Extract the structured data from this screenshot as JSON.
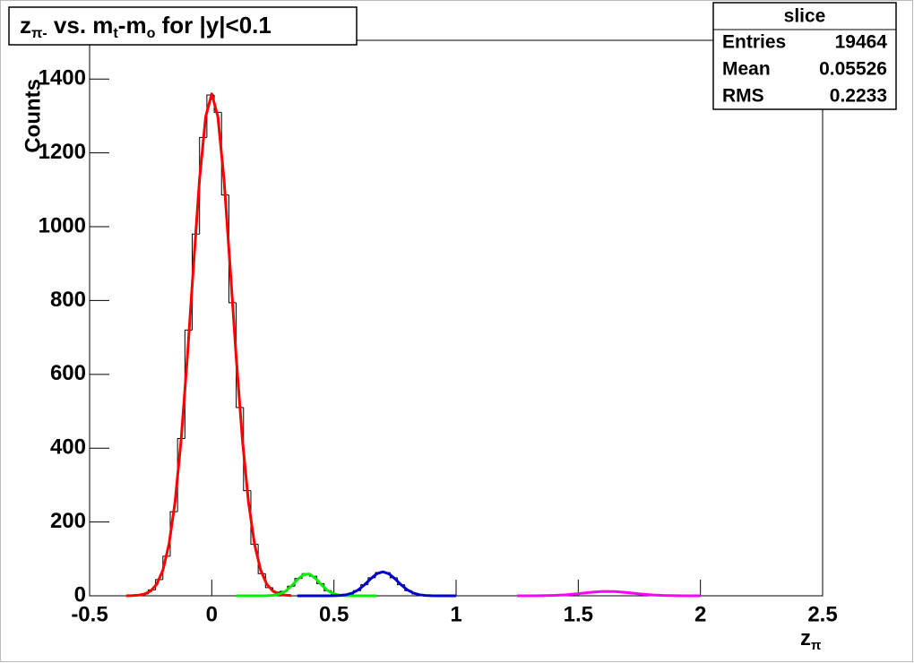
{
  "chart_data": {
    "type": "histogram",
    "title": [
      "z",
      "π-",
      " vs. m",
      "t",
      "-m",
      "o",
      " for |y|<0.1"
    ],
    "x_label": [
      "z",
      "π"
    ],
    "y_label": "Counts",
    "bins": [
      -0.5,
      -0.47,
      -0.44,
      -0.41,
      -0.38,
      -0.35,
      -0.32,
      -0.29,
      -0.26,
      -0.23,
      -0.2,
      -0.17,
      -0.14,
      -0.11,
      -0.08,
      -0.05,
      -0.02,
      0.01,
      0.04,
      0.07,
      0.1,
      0.13,
      0.16,
      0.19,
      0.22,
      0.25,
      0.28,
      0.31,
      0.34,
      0.37,
      0.4,
      0.43,
      0.46,
      0.49,
      0.52,
      0.55,
      0.58,
      0.61,
      0.64,
      0.67,
      0.7,
      0.73,
      0.76,
      0.79,
      0.82,
      0.85,
      0.88,
      0.91,
      0.94,
      0.97,
      1,
      1.03,
      1.06,
      1.09,
      1.12,
      1.15,
      1.18,
      1.21,
      1.24,
      1.27,
      1.3,
      1.33,
      1.36,
      1.39,
      1.42,
      1.45,
      1.48,
      1.51,
      1.54,
      1.57,
      1.6,
      1.63,
      1.66,
      1.69,
      1.72,
      1.75,
      1.78,
      1.81,
      1.84,
      1.87,
      1.9,
      1.93,
      1.96,
      1.99,
      2.02,
      2.05,
      2.08,
      2.11,
      2.14,
      2.17,
      2.2,
      2.23,
      2.26,
      2.29,
      2.32,
      2.35,
      2.38,
      2.41,
      2.44,
      2.47,
      2.5
    ],
    "counts": [
      0,
      0,
      0,
      0,
      0,
      0,
      1,
      5,
      16,
      44,
      107,
      228,
      426,
      720,
      980,
      1242,
      1357,
      1310,
      1086,
      794,
      510,
      285,
      140,
      60,
      22,
      10,
      12,
      26,
      47,
      60,
      53,
      33,
      14,
      4,
      3,
      5,
      14,
      30,
      49,
      63,
      63,
      49,
      30,
      14,
      5,
      2,
      1,
      0,
      0,
      0,
      0,
      0,
      0,
      0,
      0,
      0,
      0,
      0,
      0,
      0,
      0,
      0,
      0,
      1,
      2,
      4,
      6,
      8,
      10,
      11,
      12,
      11,
      10,
      8,
      6,
      4,
      3,
      2,
      1,
      0,
      0,
      0,
      0,
      0,
      0,
      0,
      0,
      0,
      0,
      0,
      0,
      0,
      0,
      0,
      0,
      0,
      0,
      0,
      0,
      0
    ],
    "color": "#000000",
    "fits": [
      {
        "color": "#ff0000",
        "x": [
          -0.35,
          -0.325,
          -0.3,
          -0.275,
          -0.25,
          -0.225,
          -0.2,
          -0.175,
          -0.15,
          -0.125,
          -0.1,
          -0.075,
          -0.05,
          -0.025,
          0,
          0.025,
          0.05,
          0.075,
          0.1,
          0.125,
          0.15,
          0.175,
          0.2,
          0.225,
          0.25,
          0.275,
          0.3,
          0.325
        ],
        "values": [
          0.15,
          0.5,
          1.7,
          4.9,
          13,
          31.6,
          69.5,
          140,
          255,
          426,
          646,
          892,
          1129,
          1298,
          1360,
          1298,
          1129,
          892,
          646,
          426,
          255,
          140,
          69.5,
          31.6,
          13,
          4.9,
          1.7,
          0.5
        ]
      },
      {
        "color": "#00ee00",
        "x": [
          0.1,
          0.125,
          0.15,
          0.175,
          0.2,
          0.225,
          0.25,
          0.275,
          0.3,
          0.325,
          0.35,
          0.375,
          0.4,
          0.425,
          0.45,
          0.475,
          0.5,
          0.525,
          0.55,
          0.575,
          0.6,
          0.625,
          0.65,
          0.675
        ],
        "values": [
          0,
          0,
          0,
          0.01,
          0.04,
          0.27,
          1.2,
          4.3,
          11.9,
          25.8,
          43.6,
          57.4,
          58.8,
          47,
          29.2,
          14.1,
          5.3,
          1.6,
          0.36,
          0.06,
          0.01,
          0,
          0,
          0
        ]
      },
      {
        "color": "#0000cc",
        "x": [
          0.35,
          0.375,
          0.4,
          0.425,
          0.45,
          0.475,
          0.5,
          0.525,
          0.55,
          0.575,
          0.6,
          0.625,
          0.65,
          0.675,
          0.7,
          0.725,
          0.75,
          0.775,
          0.8,
          0.825,
          0.85,
          0.875,
          0.9,
          0.925,
          0.95,
          0.975,
          1
        ],
        "values": [
          0,
          0,
          0,
          0,
          0.01,
          0.06,
          0.25,
          0.93,
          2.9,
          7.4,
          16.2,
          29.8,
          45.9,
          59.6,
          65,
          59.6,
          45.9,
          29.8,
          16.2,
          7.4,
          2.9,
          0.93,
          0.25,
          0.06,
          0.01,
          0,
          0
        ]
      },
      {
        "color": "#ff00ff",
        "x": [
          1.25,
          1.3,
          1.35,
          1.4,
          1.45,
          1.5,
          1.55,
          1.6,
          1.65,
          1.7,
          1.75,
          1.8,
          1.85,
          1.9,
          1.95,
          2
        ],
        "values": [
          0.01,
          0.07,
          0.31,
          1.07,
          2.8,
          5.8,
          9.4,
          11.8,
          11.5,
          8.7,
          5.2,
          2.4,
          0.85,
          0.24,
          0.05,
          0
        ]
      }
    ],
    "xlim": [
      -0.5,
      2.5
    ],
    "xticks": [
      -0.5,
      0,
      0.5,
      1,
      1.5,
      2,
      2.5
    ],
    "ylim": [
      0,
      1505
    ],
    "yticks": [
      0,
      200,
      400,
      600,
      800,
      1000,
      1200,
      1400
    ],
    "stats": {
      "title": "slice",
      "rows": [
        [
          "Entries",
          19464
        ],
        [
          "Mean",
          0.05526
        ],
        [
          "RMS",
          0.2233
        ]
      ]
    }
  }
}
